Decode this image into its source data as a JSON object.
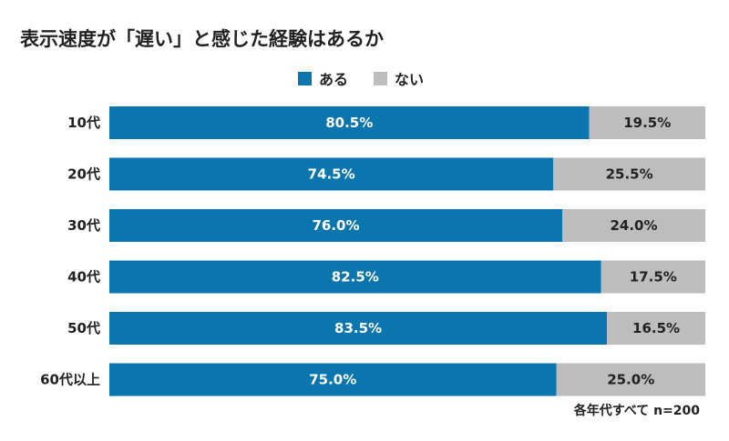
{
  "chart_data": {
    "type": "bar",
    "orientation": "horizontal",
    "stacked": true,
    "title": "表示速度が「遅い」と感じた経験はあるか",
    "categories": [
      "10代",
      "20代",
      "30代",
      "40代",
      "50代",
      "60代以上"
    ],
    "series": [
      {
        "name": "ある",
        "color": "#0a76ad",
        "values": [
          80.5,
          74.5,
          76.0,
          82.5,
          83.5,
          75.0
        ],
        "labels": [
          "80.5%",
          "74.5%",
          "76.0%",
          "82.5%",
          "83.5%",
          "75.0%"
        ]
      },
      {
        "name": "ない",
        "color": "#bdbdbd",
        "values": [
          19.5,
          25.5,
          24.0,
          17.5,
          16.5,
          25.0
        ],
        "labels": [
          "19.5%",
          "25.5%",
          "24.0%",
          "17.5%",
          "16.5%",
          "25.0%"
        ]
      }
    ],
    "xlim": [
      0,
      100
    ],
    "grid": false,
    "legend": "top-center",
    "note": "各年代すべて n=200"
  }
}
